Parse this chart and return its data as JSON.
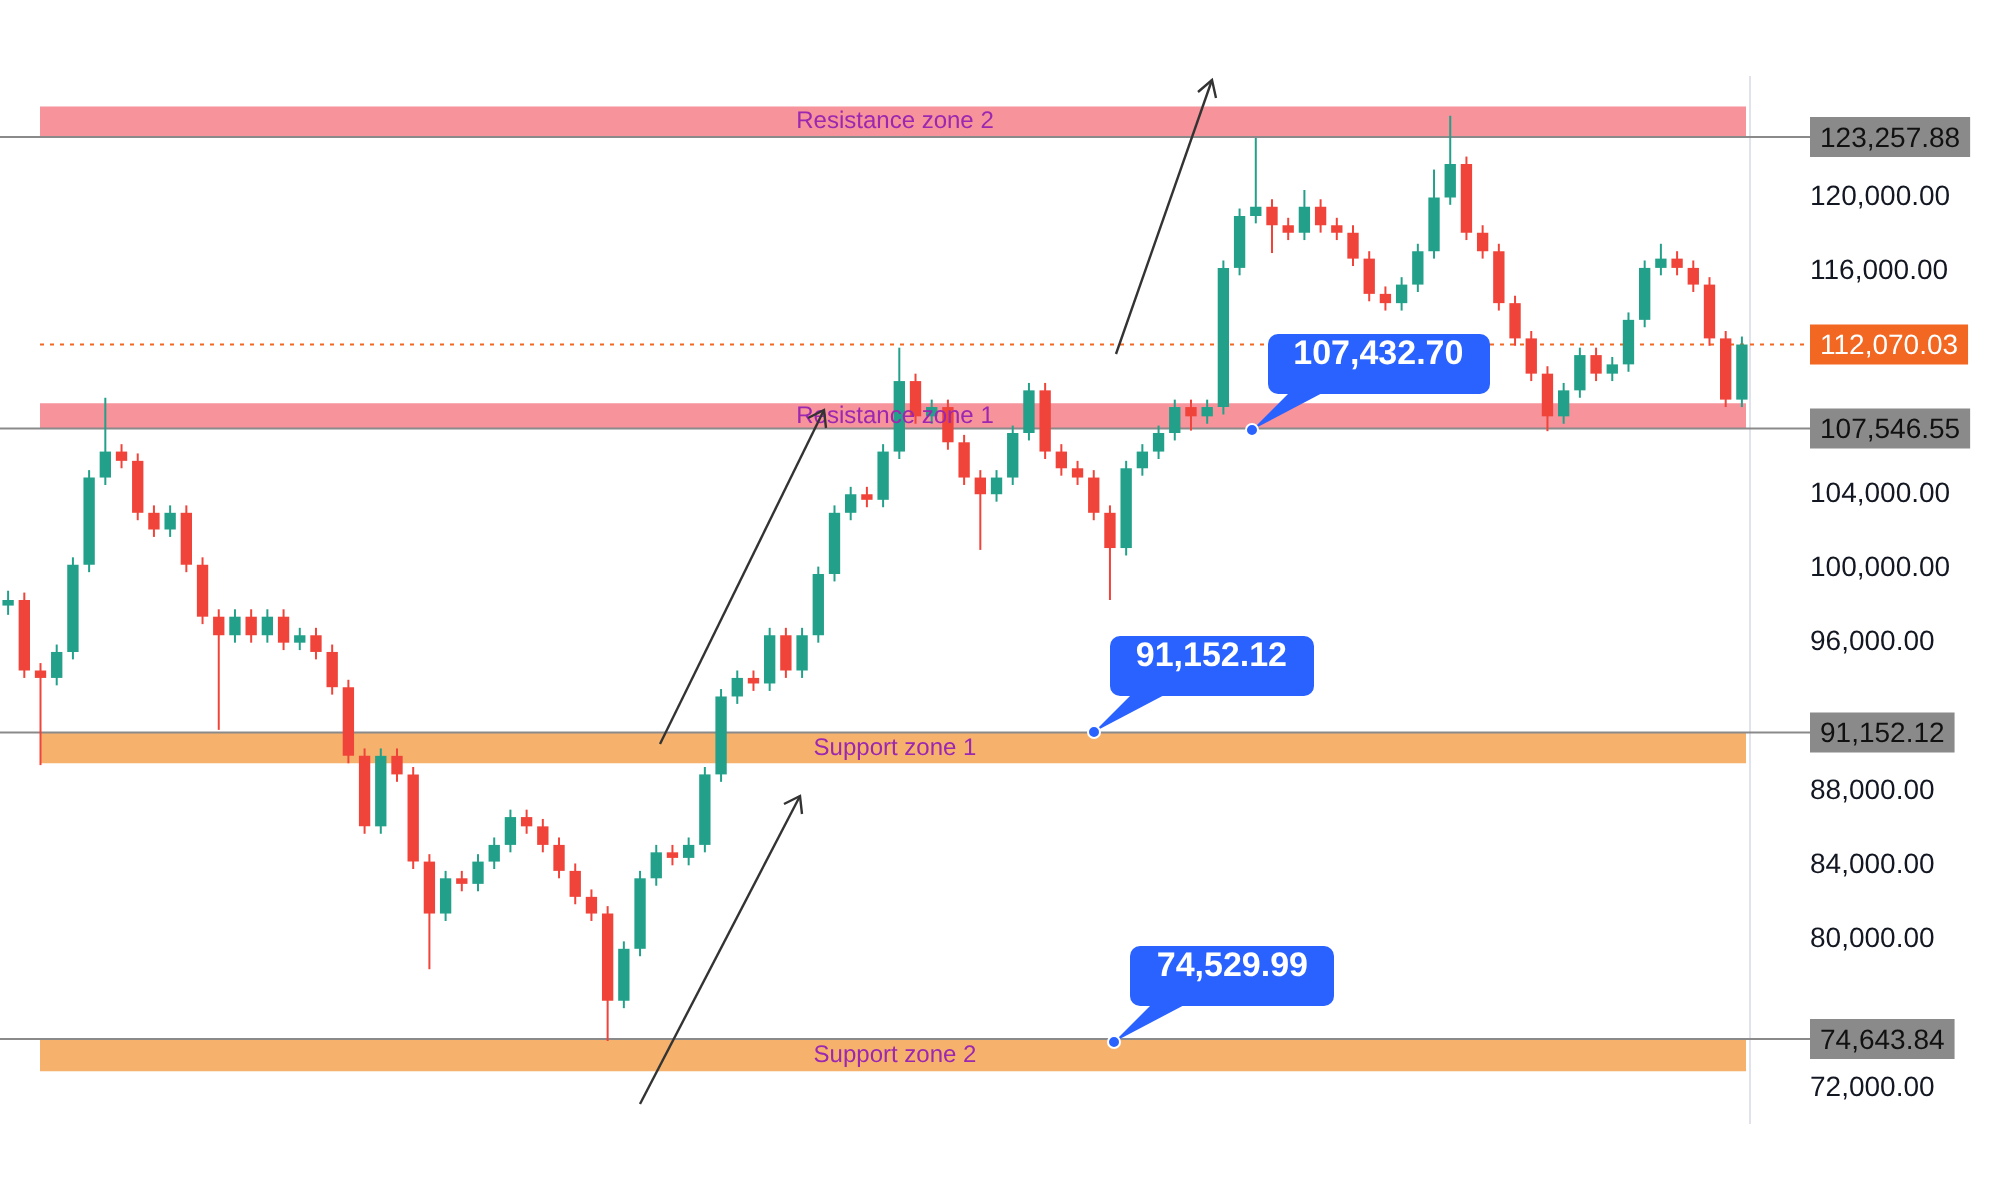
{
  "chart_data": {
    "type": "candlestick",
    "categories": [
      null,
      null,
      null,
      null,
      null,
      null,
      null,
      null,
      null,
      null,
      null,
      null,
      null,
      null,
      null,
      null,
      null,
      null,
      null,
      null,
      null,
      null,
      null,
      null,
      null,
      null,
      null,
      null,
      null,
      null,
      null,
      null,
      null,
      null,
      null,
      null,
      null,
      null,
      null,
      null,
      null,
      null,
      null,
      null,
      null,
      null,
      null,
      null,
      null,
      null,
      null,
      null,
      null,
      null,
      null,
      null,
      null,
      null,
      null,
      null,
      null,
      null,
      null,
      null,
      null,
      null,
      null,
      null,
      null,
      null,
      null,
      null,
      null,
      null,
      null,
      null,
      null,
      null,
      null,
      null,
      null,
      null,
      null,
      null,
      null,
      null,
      null,
      null,
      null,
      null,
      null,
      null,
      null,
      null,
      null,
      null,
      null,
      null,
      null,
      null,
      null,
      null,
      null,
      null,
      null,
      null,
      null,
      null
    ],
    "ohlc": [
      [
        98000,
        98800,
        97500,
        98300
      ],
      [
        98300,
        98700,
        94100,
        94500
      ],
      [
        94500,
        94900,
        89400,
        94100
      ],
      [
        94100,
        95900,
        93700,
        95500
      ],
      [
        95500,
        100600,
        95100,
        100200
      ],
      [
        100200,
        105300,
        99800,
        104900
      ],
      [
        104900,
        109200,
        104500,
        106300
      ],
      [
        106300,
        106700,
        105400,
        105800
      ],
      [
        105800,
        106200,
        102600,
        103000
      ],
      [
        103000,
        103400,
        101700,
        102100
      ],
      [
        102100,
        103400,
        101700,
        103000
      ],
      [
        103000,
        103400,
        99800,
        100200
      ],
      [
        100200,
        100600,
        97000,
        97400
      ],
      [
        97400,
        97800,
        91300,
        96400
      ],
      [
        96400,
        97800,
        96000,
        97400
      ],
      [
        97400,
        97800,
        96000,
        96400
      ],
      [
        96400,
        97800,
        96000,
        97400
      ],
      [
        97400,
        97800,
        95600,
        96000
      ],
      [
        96000,
        96800,
        95600,
        96400
      ],
      [
        96400,
        96800,
        95100,
        95500
      ],
      [
        95500,
        95900,
        93200,
        93600
      ],
      [
        93600,
        94000,
        89500,
        89900
      ],
      [
        89900,
        90300,
        85700,
        86100
      ],
      [
        86100,
        90300,
        85700,
        89900
      ],
      [
        89900,
        90300,
        88500,
        88900
      ],
      [
        88900,
        89300,
        83800,
        84200
      ],
      [
        84200,
        84600,
        78400,
        81400
      ],
      [
        81400,
        83700,
        81000,
        83300
      ],
      [
        83300,
        83700,
        82600,
        83000
      ],
      [
        83000,
        84600,
        82600,
        84200
      ],
      [
        84200,
        85500,
        83800,
        85100
      ],
      [
        85100,
        87000,
        84700,
        86600
      ],
      [
        86600,
        87000,
        85700,
        86100
      ],
      [
        86100,
        86500,
        84700,
        85100
      ],
      [
        85100,
        85500,
        83300,
        83700
      ],
      [
        83700,
        84100,
        81900,
        82300
      ],
      [
        82300,
        82700,
        81000,
        81400
      ],
      [
        81400,
        81800,
        74530,
        76700
      ],
      [
        76700,
        79900,
        76300,
        79500
      ],
      [
        79500,
        83700,
        79100,
        83300
      ],
      [
        83300,
        85100,
        82900,
        84700
      ],
      [
        84700,
        85100,
        84000,
        84400
      ],
      [
        84400,
        85500,
        84000,
        85100
      ],
      [
        85100,
        89300,
        84700,
        88900
      ],
      [
        88900,
        93500,
        88500,
        93100
      ],
      [
        93100,
        94500,
        92700,
        94100
      ],
      [
        94100,
        94500,
        93400,
        93800
      ],
      [
        93800,
        96800,
        93400,
        96400
      ],
      [
        96400,
        96800,
        94100,
        94500
      ],
      [
        94500,
        96800,
        94100,
        96400
      ],
      [
        96400,
        100100,
        96000,
        99700
      ],
      [
        99700,
        103400,
        99300,
        103000
      ],
      [
        103000,
        104400,
        102600,
        104000
      ],
      [
        104000,
        104400,
        103300,
        103700
      ],
      [
        103700,
        106700,
        103300,
        106300
      ],
      [
        106300,
        111900,
        105900,
        110100
      ],
      [
        110100,
        110500,
        107800,
        108200
      ],
      [
        108200,
        109100,
        107800,
        108700
      ],
      [
        108700,
        109100,
        106400,
        106800
      ],
      [
        106800,
        107200,
        104500,
        104900
      ],
      [
        104900,
        105300,
        101000,
        104000
      ],
      [
        104000,
        105300,
        103600,
        104900
      ],
      [
        104900,
        107700,
        104500,
        107300
      ],
      [
        107300,
        110000,
        106900,
        109600
      ],
      [
        109600,
        110000,
        105900,
        106300
      ],
      [
        106300,
        106700,
        105000,
        105400
      ],
      [
        105400,
        105800,
        104500,
        104900
      ],
      [
        104900,
        105300,
        102600,
        103000
      ],
      [
        103000,
        103400,
        98300,
        101100
      ],
      [
        101100,
        105800,
        100700,
        105400
      ],
      [
        105400,
        106700,
        105000,
        106300
      ],
      [
        106300,
        107700,
        105900,
        107300
      ],
      [
        107300,
        109100,
        106900,
        108700
      ],
      [
        108700,
        109100,
        107430,
        108200
      ],
      [
        108200,
        109100,
        107800,
        108700
      ],
      [
        108700,
        116600,
        108300,
        116200
      ],
      [
        116200,
        119400,
        115800,
        119000
      ],
      [
        119000,
        123200,
        118600,
        119500
      ],
      [
        119500,
        119900,
        117000,
        118500
      ],
      [
        118500,
        118900,
        117700,
        118100
      ],
      [
        118100,
        120400,
        117700,
        119500
      ],
      [
        119500,
        119900,
        118100,
        118500
      ],
      [
        118500,
        118900,
        117700,
        118100
      ],
      [
        118100,
        118500,
        116300,
        116700
      ],
      [
        116700,
        117100,
        114400,
        114800
      ],
      [
        114800,
        115200,
        113900,
        114300
      ],
      [
        114300,
        115700,
        113900,
        115300
      ],
      [
        115300,
        117500,
        114900,
        117100
      ],
      [
        117100,
        121500,
        116700,
        120000
      ],
      [
        120000,
        124400,
        119600,
        121800
      ],
      [
        121800,
        122200,
        117700,
        118100
      ],
      [
        118100,
        118500,
        116700,
        117100
      ],
      [
        117100,
        117500,
        113900,
        114300
      ],
      [
        114300,
        114700,
        112000,
        112400
      ],
      [
        112400,
        112800,
        110100,
        110500
      ],
      [
        110500,
        110900,
        107400,
        108200
      ],
      [
        108200,
        110000,
        107800,
        109600
      ],
      [
        109600,
        111900,
        109200,
        111500
      ],
      [
        111500,
        111900,
        110100,
        110500
      ],
      [
        110500,
        111400,
        110100,
        111000
      ],
      [
        111000,
        113800,
        110600,
        113400
      ],
      [
        113400,
        116600,
        113000,
        116200
      ],
      [
        116200,
        117500,
        115800,
        116700
      ],
      [
        116700,
        117100,
        115800,
        116200
      ],
      [
        116200,
        116600,
        114900,
        115300
      ],
      [
        115300,
        115700,
        112000,
        112400
      ],
      [
        112400,
        112800,
        108700,
        109100
      ],
      [
        109100,
        112500,
        108700,
        112070.03
      ]
    ],
    "colors": [
      "#22a08a",
      "#f0443a",
      "#f0443a",
      "#22a08a",
      "#22a08a",
      "#22a08a",
      "#22a08a",
      "#f0443a",
      "#f0443a",
      "#f0443a",
      "#22a08a",
      "#f0443a",
      "#f0443a",
      "#f0443a",
      "#22a08a",
      "#f0443a",
      "#22a08a",
      "#f0443a",
      "#22a08a",
      "#f0443a",
      "#f0443a",
      "#f0443a",
      "#f0443a",
      "#22a08a",
      "#f0443a",
      "#f0443a",
      "#f0443a",
      "#22a08a",
      "#f0443a",
      "#22a08a",
      "#22a08a",
      "#22a08a",
      "#f0443a",
      "#f0443a",
      "#f0443a",
      "#f0443a",
      "#f0443a",
      "#f0443a",
      "#22a08a",
      "#22a08a",
      "#22a08a",
      "#f0443a",
      "#22a08a",
      "#22a08a",
      "#22a08a",
      "#22a08a",
      "#f0443a",
      "#22a08a",
      "#f0443a",
      "#22a08a",
      "#22a08a",
      "#22a08a",
      "#22a08a",
      "#f0443a",
      "#22a08a",
      "#22a08a",
      "#f0443a",
      "#22a08a",
      "#f0443a",
      "#f0443a",
      "#f0443a",
      "#22a08a",
      "#22a08a",
      "#22a08a",
      "#f0443a",
      "#f0443a",
      "#f0443a",
      "#f0443a",
      "#f0443a",
      "#22a08a",
      "#22a08a",
      "#22a08a",
      "#22a08a",
      "#f0443a",
      "#22a08a",
      "#22a08a",
      "#22a08a",
      "#22a08a",
      "#f0443a",
      "#f0443a",
      "#22a08a",
      "#f0443a",
      "#f0443a",
      "#f0443a",
      "#f0443a",
      "#f0443a",
      "#22a08a",
      "#22a08a",
      "#22a08a",
      "#22a08a",
      "#f0443a",
      "#f0443a",
      "#f0443a",
      "#f0443a",
      "#f0443a",
      "#f0443a",
      "#22a08a",
      "#22a08a",
      "#f0443a",
      "#22a08a",
      "#22a08a",
      "#22a08a",
      "#22a08a",
      "#f0443a",
      "#f0443a",
      "#f0443a",
      "#f0443a",
      "#22a08a"
    ],
    "ylim": [
      70100,
      126500
    ],
    "yticks": [
      {
        "value": 72000,
        "label": "72,000.00"
      },
      {
        "value": 80000,
        "label": "80,000.00"
      },
      {
        "value": 84000,
        "label": "84,000.00"
      },
      {
        "value": 88000,
        "label": "88,000.00"
      },
      {
        "value": 96000,
        "label": "96,000.00"
      },
      {
        "value": 100000,
        "label": "100,000.00"
      },
      {
        "value": 104000,
        "label": "104,000.00"
      },
      {
        "value": 116000,
        "label": "116,000.00"
      },
      {
        "value": 120000,
        "label": "120,000.00"
      }
    ],
    "bands": [
      {
        "axis": "y",
        "from": 123257.88,
        "to": 124900,
        "label": "Resistance zone 2",
        "color": "#f5808a"
      },
      {
        "axis": "y",
        "from": 107546.55,
        "to": 108900,
        "label": "Resistance zone 1",
        "color": "#f5808a"
      },
      {
        "axis": "y",
        "from": 89500,
        "to": 91152.12,
        "label": "Support zone 1",
        "color": "#f5a552"
      },
      {
        "axis": "y",
        "from": 72900,
        "to": 74643.84,
        "label": "Support zone 2",
        "color": "#f5a552"
      }
    ],
    "ref_lines": [
      {
        "axis": "y",
        "value": 123257.88,
        "label": "123,257.88",
        "color": "#8a8a8a",
        "line_style": "solid"
      },
      {
        "axis": "y",
        "value": 107546.55,
        "label": "107,546.55",
        "color": "#8a8a8a",
        "line_style": "solid"
      },
      {
        "axis": "y",
        "value": 91152.12,
        "label": "91,152.12",
        "color": "#8a8a8a",
        "line_style": "solid"
      },
      {
        "axis": "y",
        "value": 74643.84,
        "label": "74,643.84",
        "color": "#8a8a8a",
        "line_style": "solid"
      },
      {
        "axis": "y",
        "value": 112070.03,
        "label": "112,070.03",
        "color": "#f26722",
        "line_style": "dotted"
      }
    ],
    "annotations": [
      {
        "text": "107,432.70",
        "y": 107432.7
      },
      {
        "text": "91,152.12",
        "y": 91152.12
      },
      {
        "text": "74,529.99",
        "y": 74529.99
      }
    ],
    "grid": false,
    "legend": false,
    "tick_labels": "y"
  }
}
